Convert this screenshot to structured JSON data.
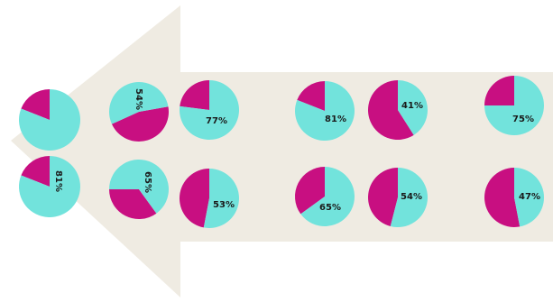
{
  "colors": {
    "background": "#ffffff",
    "arrow_fill": "#efebe2",
    "primary": "#72e3dc",
    "secondary": "#c80f81",
    "label": "#1a1a1a"
  },
  "pies": [
    {
      "id": "r1c1",
      "percent": 81,
      "label": ""
    },
    {
      "id": "r1c2",
      "percent": 54,
      "label": "54%"
    },
    {
      "id": "r1c3",
      "percent": 77,
      "label": "77%"
    },
    {
      "id": "r1c4",
      "percent": 81,
      "label": "81%"
    },
    {
      "id": "r1c5",
      "percent": 41,
      "label": "41%"
    },
    {
      "id": "r1c6",
      "percent": 75,
      "label": "75%"
    },
    {
      "id": "r2c1",
      "percent": 81,
      "label": "81%"
    },
    {
      "id": "r2c2",
      "percent": 65,
      "label": "65%"
    },
    {
      "id": "r2c3",
      "percent": 53,
      "label": "53%"
    },
    {
      "id": "r2c4",
      "percent": 65,
      "label": "65%"
    },
    {
      "id": "r2c5",
      "percent": 54,
      "label": "54%"
    },
    {
      "id": "r2c6",
      "percent": 47,
      "label": "47%"
    }
  ]
}
